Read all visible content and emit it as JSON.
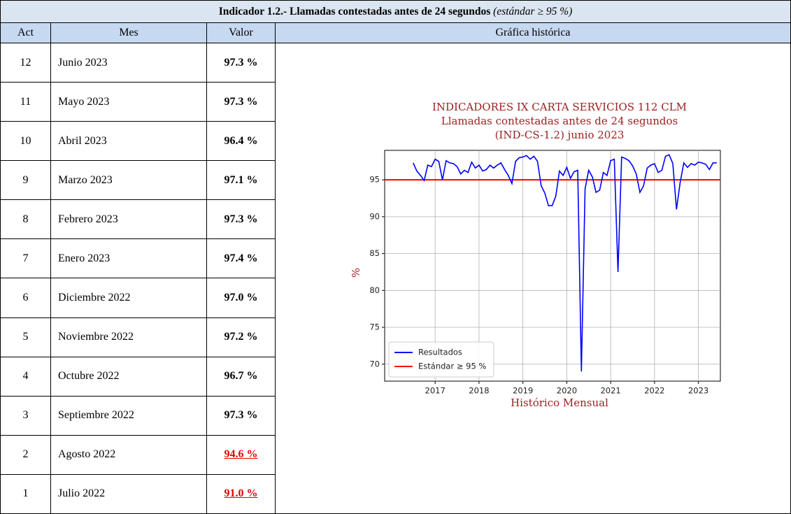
{
  "table": {
    "title": "Indicador 1.2.- Llamadas contestadas antes de 24 segundos",
    "title_note": "(estándar ≥ 95 %)",
    "columns": [
      "Act",
      "Mes",
      "Valor",
      "Gráfica histórica"
    ],
    "rows": [
      {
        "act": "12",
        "mes": "Junio 2023",
        "valor": "97.3 %"
      },
      {
        "act": "11",
        "mes": "Mayo 2023",
        "valor": "97.3 %"
      },
      {
        "act": "10",
        "mes": "Abril 2023",
        "valor": "96.4 %"
      },
      {
        "act": "9",
        "mes": "Marzo 2023",
        "valor": "97.1 %"
      },
      {
        "act": "8",
        "mes": "Febrero 2023",
        "valor": "97.3 %"
      },
      {
        "act": "7",
        "mes": "Enero 2023",
        "valor": "97.4 %"
      },
      {
        "act": "6",
        "mes": "Diciembre 2022",
        "valor": "97.0 %"
      },
      {
        "act": "5",
        "mes": "Noviembre 2022",
        "valor": "97.2 %"
      },
      {
        "act": "4",
        "mes": "Octubre 2022",
        "valor": "96.7 %"
      },
      {
        "act": "3",
        "mes": "Septiembre 2022",
        "valor": "97.3 %"
      },
      {
        "act": "2",
        "mes": "Agosto 2022",
        "valor": "94.6 %",
        "alert": true
      },
      {
        "act": "1",
        "mes": "Julio 2022",
        "valor": "91.0 %",
        "alert": true
      }
    ]
  },
  "chart_data": {
    "type": "line",
    "title": [
      "INDICADORES IX CARTA SERVICIOS 112 CLM",
      "Llamadas contestadas antes de 24 segundos",
      "(IND-CS-1.2) junio 2023"
    ],
    "x_label": "Histórico Mensual",
    "y_label": "%",
    "x": [
      2016.5,
      2016.583,
      2016.667,
      2016.75,
      2016.833,
      2016.917,
      2017.0,
      2017.083,
      2017.167,
      2017.25,
      2017.333,
      2017.417,
      2017.5,
      2017.583,
      2017.667,
      2017.75,
      2017.833,
      2017.917,
      2018.0,
      2018.083,
      2018.167,
      2018.25,
      2018.333,
      2018.417,
      2018.5,
      2018.583,
      2018.667,
      2018.75,
      2018.833,
      2018.917,
      2019.0,
      2019.083,
      2019.167,
      2019.25,
      2019.333,
      2019.417,
      2019.5,
      2019.583,
      2019.667,
      2019.75,
      2019.833,
      2019.917,
      2020.0,
      2020.083,
      2020.167,
      2020.25,
      2020.333,
      2020.417,
      2020.5,
      2020.583,
      2020.667,
      2020.75,
      2020.833,
      2020.917,
      2021.0,
      2021.083,
      2021.167,
      2021.25,
      2021.333,
      2021.417,
      2021.5,
      2021.583,
      2021.667,
      2021.75,
      2021.833,
      2021.917,
      2022.0,
      2022.083,
      2022.167,
      2022.25,
      2022.333,
      2022.417,
      2022.5,
      2022.583,
      2022.667,
      2022.75,
      2022.833,
      2022.917,
      2023.0,
      2023.083,
      2023.167,
      2023.25,
      2023.333,
      2023.417
    ],
    "series": [
      {
        "name": "Resultados",
        "color": "#0000ff",
        "values": [
          97.3,
          96.2,
          95.6,
          94.9,
          97.0,
          96.8,
          97.8,
          97.5,
          95.0,
          97.6,
          97.3,
          97.2,
          96.8,
          95.8,
          96.3,
          96.0,
          97.4,
          96.6,
          97.0,
          96.2,
          96.4,
          97.0,
          96.6,
          97.0,
          97.3,
          96.4,
          95.6,
          94.5,
          97.5,
          98.0,
          98.1,
          98.3,
          97.8,
          98.2,
          97.5,
          94.2,
          93.2,
          91.5,
          91.5,
          92.8,
          96.2,
          95.6,
          96.7,
          95.2,
          96.1,
          96.3,
          69.0,
          93.8,
          96.3,
          95.4,
          93.3,
          93.6,
          96.0,
          95.6,
          97.6,
          97.8,
          82.5,
          98.1,
          97.9,
          97.6,
          96.9,
          95.8,
          93.3,
          94.2,
          96.6,
          97.0,
          97.2,
          96.0,
          96.3,
          98.2,
          98.4,
          97.2,
          91.0,
          94.6,
          97.3,
          96.7,
          97.2,
          97.0,
          97.4,
          97.3,
          97.1,
          96.4,
          97.3,
          97.3
        ]
      }
    ],
    "reference_lines": [
      {
        "name": "Estándar ≥ 95 %",
        "value": 95,
        "color": "#ff0000"
      }
    ],
    "xlim": [
      2015.85,
      2023.5
    ],
    "ylim": [
      67.7,
      99.0
    ],
    "xticks": [
      2017,
      2018,
      2019,
      2020,
      2021,
      2022,
      2023
    ],
    "yticks": [
      70,
      75,
      80,
      85,
      90,
      95
    ],
    "grid": true,
    "legend": "lower left"
  }
}
